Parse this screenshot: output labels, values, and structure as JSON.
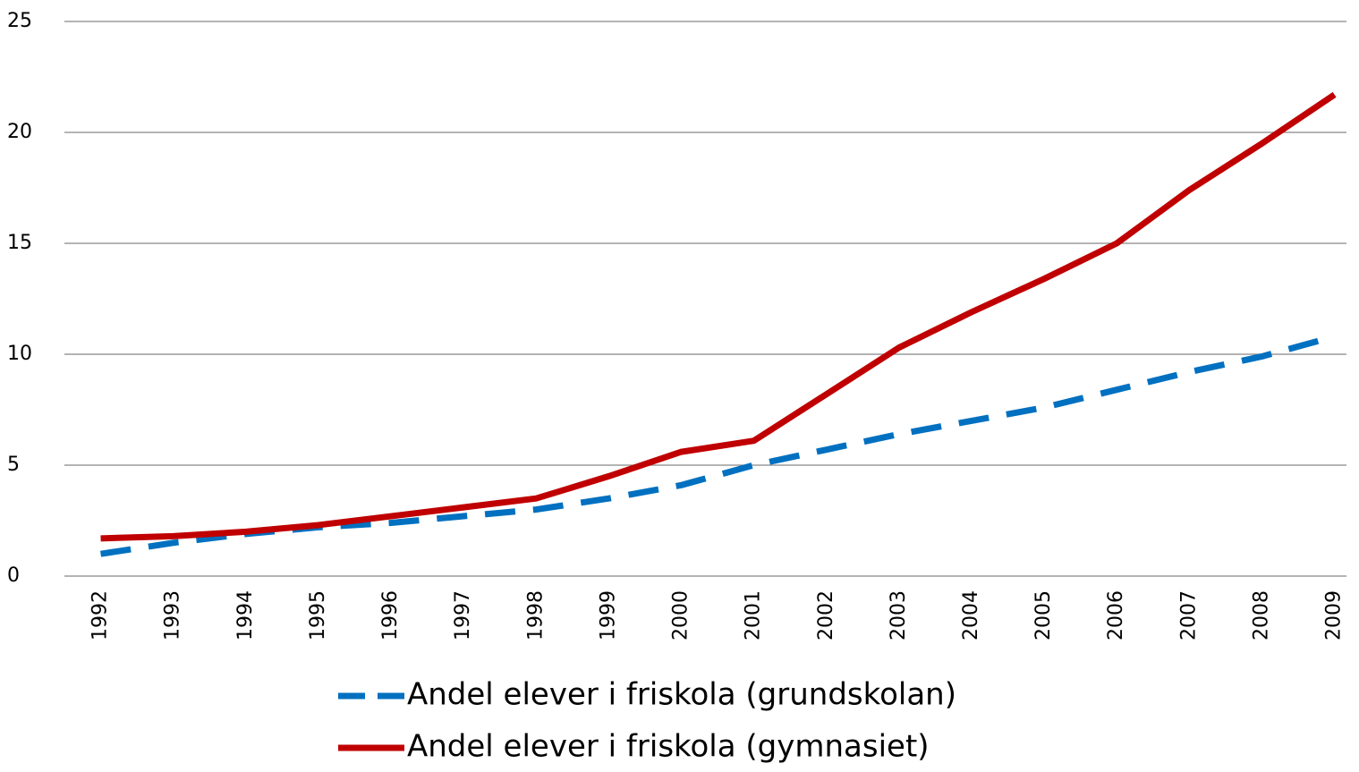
{
  "chart_data": {
    "type": "line",
    "categories": [
      "1992",
      "1993",
      "1994",
      "1995",
      "1996",
      "1997",
      "1998",
      "1999",
      "2000",
      "2001",
      "2002",
      "2003",
      "2004",
      "2005",
      "2006",
      "2007",
      "2008",
      "2009"
    ],
    "series": [
      {
        "name": "Andel elever i friskola (grundskolan)",
        "color": "#0070c0",
        "dash": "dashed",
        "values": [
          1.0,
          1.5,
          1.9,
          2.2,
          2.4,
          2.7,
          3.0,
          3.5,
          4.1,
          5.0,
          5.7,
          6.4,
          7.0,
          7.6,
          8.4,
          9.2,
          9.9,
          10.8
        ]
      },
      {
        "name": "Andel elever i friskola (gymnasiet)",
        "color": "#c00000",
        "dash": "solid",
        "values": [
          1.7,
          1.8,
          2.0,
          2.3,
          2.7,
          3.1,
          3.5,
          4.5,
          5.6,
          6.1,
          8.2,
          10.3,
          11.9,
          13.4,
          15.0,
          17.4,
          19.5,
          21.7
        ]
      }
    ],
    "ylim": [
      0,
      25
    ],
    "yticks": [
      0,
      5,
      10,
      15,
      20,
      25
    ],
    "grid": true,
    "legend": "bottom"
  }
}
